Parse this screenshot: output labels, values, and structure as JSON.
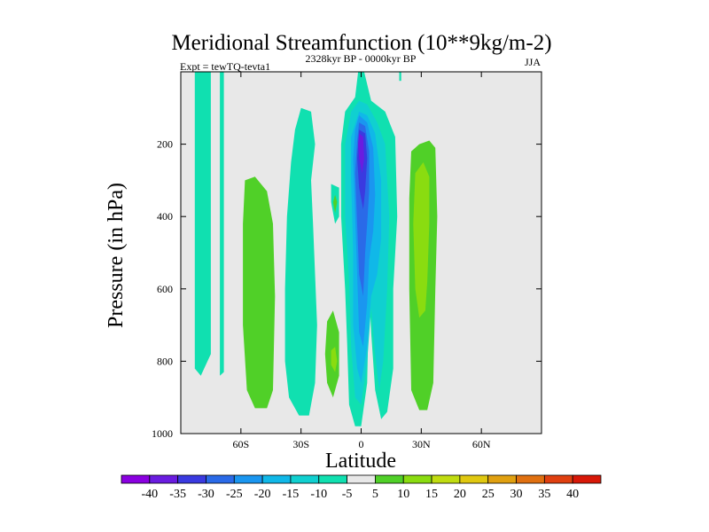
{
  "chart_data": {
    "type": "filled-contour",
    "title": "Meridional Streamfunction (10**9kg/m-2)",
    "subtitle_left": "Expt = tewTQ-tevta1",
    "subtitle_center": "2328kyr BP - 0000kyr BP",
    "subtitle_right": "JJA",
    "xlabel": "Latitude",
    "ylabel": "Pressure (in hPa)",
    "xlim": [
      -90,
      90
    ],
    "ylim": [
      1000,
      0
    ],
    "x_ticks": [
      {
        "value": -60,
        "label": "60S"
      },
      {
        "value": -30,
        "label": "30S"
      },
      {
        "value": 0,
        "label": "0"
      },
      {
        "value": 30,
        "label": "30N"
      },
      {
        "value": 60,
        "label": "60N"
      }
    ],
    "y_ticks": [
      {
        "value": 200,
        "label": "200"
      },
      {
        "value": 400,
        "label": "400"
      },
      {
        "value": 600,
        "label": "600"
      },
      {
        "value": 800,
        "label": "800"
      },
      {
        "value": 1000,
        "label": "1000"
      }
    ],
    "colorbar": {
      "labels": [
        "-40",
        "-35",
        "-30",
        "-25",
        "-20",
        "-15",
        "-10",
        "-5",
        "5",
        "10",
        "15",
        "20",
        "25",
        "30",
        "35",
        "40"
      ],
      "colors": [
        "#8a00e0",
        "#6a1ce0",
        "#3a3ae0",
        "#2a6ae8",
        "#1a96f0",
        "#10b8e8",
        "#10d0d0",
        "#10e0b0",
        "#e8e8e8",
        "#50d028",
        "#8adc10",
        "#c0dc10",
        "#e0c810",
        "#e0a010",
        "#e07010",
        "#e04010",
        "#d81808"
      ]
    },
    "regions": [
      {
        "color": "#10e0b0",
        "points": [
          [
            -83,
            0
          ],
          [
            -75,
            0
          ],
          [
            -75,
            780
          ],
          [
            -80,
            840
          ],
          [
            -83,
            820
          ]
        ]
      },
      {
        "color": "#10e0b0",
        "points": [
          [
            -70.5,
            0
          ],
          [
            -68.5,
            0
          ],
          [
            -68.5,
            830
          ],
          [
            -70.5,
            840
          ]
        ]
      },
      {
        "color": "#50d028",
        "points": [
          [
            -58,
            300
          ],
          [
            -53,
            290
          ],
          [
            -47,
            330
          ],
          [
            -44,
            420
          ],
          [
            -43,
            620
          ],
          [
            -44,
            880
          ],
          [
            -47,
            930
          ],
          [
            -53,
            930
          ],
          [
            -57,
            880
          ],
          [
            -59,
            700
          ],
          [
            -59,
            420
          ]
        ]
      },
      {
        "color": "#10e0b0",
        "points": [
          [
            -30,
            100
          ],
          [
            -25,
            110
          ],
          [
            -23,
            200
          ],
          [
            -25,
            300
          ],
          [
            -24,
            420
          ],
          [
            -23,
            560
          ],
          [
            -22,
            700
          ],
          [
            -23,
            860
          ],
          [
            -26,
            950
          ],
          [
            -31,
            950
          ],
          [
            -36,
            900
          ],
          [
            -38,
            800
          ],
          [
            -38,
            600
          ],
          [
            -37,
            400
          ],
          [
            -35,
            250
          ],
          [
            -33,
            160
          ]
        ]
      },
      {
        "color": "#10e0b0",
        "points": [
          [
            -15,
            310
          ],
          [
            -11,
            320
          ],
          [
            -11,
            400
          ],
          [
            -13,
            420
          ],
          [
            -15,
            360
          ]
        ]
      },
      {
        "color": "#50d028",
        "points": [
          [
            -13,
            340
          ],
          [
            -12,
            360
          ],
          [
            -13,
            390
          ],
          [
            -14,
            360
          ]
        ]
      },
      {
        "color": "#10e0b0",
        "points": [
          [
            -1.5,
            0
          ],
          [
            1.5,
            0
          ],
          [
            5,
            80
          ],
          [
            12,
            110
          ],
          [
            17,
            180
          ],
          [
            18,
            400
          ],
          [
            16,
            600
          ],
          [
            16,
            820
          ],
          [
            13,
            940
          ],
          [
            10,
            960
          ],
          [
            7,
            880
          ],
          [
            5,
            720
          ],
          [
            4,
            600
          ],
          [
            3,
            860
          ],
          [
            0,
            980
          ],
          [
            -3,
            980
          ],
          [
            -6,
            920
          ],
          [
            -7,
            750
          ],
          [
            -8,
            600
          ],
          [
            -10,
            400
          ],
          [
            -10,
            200
          ],
          [
            -8,
            110
          ],
          [
            -3,
            70
          ]
        ]
      },
      {
        "color": "#10d0d0",
        "points": [
          [
            -1,
            80
          ],
          [
            3,
            90
          ],
          [
            8,
            140
          ],
          [
            12,
            200
          ],
          [
            14,
            400
          ],
          [
            13,
            600
          ],
          [
            11,
            800
          ],
          [
            9,
            880
          ],
          [
            7,
            780
          ],
          [
            5,
            650
          ],
          [
            3,
            800
          ],
          [
            0,
            920
          ],
          [
            -3,
            900
          ],
          [
            -5,
            760
          ],
          [
            -6,
            580
          ],
          [
            -8,
            400
          ],
          [
            -8,
            200
          ],
          [
            -5,
            110
          ]
        ]
      },
      {
        "color": "#10b8e8",
        "points": [
          [
            -1,
            110
          ],
          [
            3,
            120
          ],
          [
            7,
            170
          ],
          [
            10,
            300
          ],
          [
            10,
            460
          ],
          [
            8,
            560
          ],
          [
            5,
            620
          ],
          [
            3,
            760
          ],
          [
            0,
            860
          ],
          [
            -2,
            820
          ],
          [
            -4,
            700
          ],
          [
            -4,
            500
          ],
          [
            -5,
            300
          ],
          [
            -5,
            180
          ]
        ]
      },
      {
        "color": "#1a96f0",
        "points": [
          [
            -1,
            120
          ],
          [
            3,
            140
          ],
          [
            6,
            210
          ],
          [
            7,
            340
          ],
          [
            6,
            440
          ],
          [
            4,
            520
          ],
          [
            3,
            640
          ],
          [
            1,
            760
          ],
          [
            -1,
            720
          ],
          [
            -2,
            560
          ],
          [
            -3,
            400
          ],
          [
            -4,
            240
          ],
          [
            -3,
            160
          ]
        ]
      },
      {
        "color": "#2a6ae8",
        "points": [
          [
            -1,
            140
          ],
          [
            2,
            150
          ],
          [
            4,
            220
          ],
          [
            4,
            330
          ],
          [
            3,
            420
          ],
          [
            2,
            500
          ],
          [
            1,
            620
          ],
          [
            -1,
            560
          ],
          [
            -2,
            420
          ],
          [
            -3,
            280
          ],
          [
            -2,
            190
          ]
        ]
      },
      {
        "color": "#3a3ae0",
        "points": [
          [
            -1,
            160
          ],
          [
            2,
            170
          ],
          [
            3,
            240
          ],
          [
            2,
            330
          ],
          [
            1,
            380
          ],
          [
            -1,
            320
          ],
          [
            -2,
            240
          ]
        ]
      },
      {
        "color": "#6a1ce0",
        "points": [
          [
            -1,
            170
          ],
          [
            1,
            180
          ],
          [
            1.5,
            240
          ],
          [
            0.5,
            280
          ],
          [
            -1,
            240
          ],
          [
            -1.5,
            200
          ]
        ]
      },
      {
        "color": "#50d028",
        "points": [
          [
            -17,
            690
          ],
          [
            -14,
            660
          ],
          [
            -11,
            720
          ],
          [
            -11,
            840
          ],
          [
            -14,
            900
          ],
          [
            -17,
            860
          ],
          [
            -18,
            780
          ]
        ]
      },
      {
        "color": "#8adc10",
        "points": [
          [
            -15,
            770
          ],
          [
            -13,
            760
          ],
          [
            -12,
            800
          ],
          [
            -13,
            830
          ],
          [
            -15,
            810
          ]
        ]
      },
      {
        "color": "#10e0b0",
        "points": [
          [
            19,
            0
          ],
          [
            20,
            0
          ],
          [
            20,
            25
          ],
          [
            19,
            25
          ]
        ]
      },
      {
        "color": "#50d028",
        "points": [
          [
            25,
            220
          ],
          [
            29,
            200
          ],
          [
            34,
            190
          ],
          [
            37,
            210
          ],
          [
            38,
            400
          ],
          [
            37,
            600
          ],
          [
            36,
            860
          ],
          [
            33,
            935
          ],
          [
            29,
            935
          ],
          [
            25,
            880
          ],
          [
            24,
            600
          ],
          [
            24,
            350
          ]
        ]
      },
      {
        "color": "#8adc10",
        "points": [
          [
            27,
            280
          ],
          [
            31,
            250
          ],
          [
            34,
            290
          ],
          [
            34,
            420
          ],
          [
            33,
            580
          ],
          [
            32,
            660
          ],
          [
            29,
            680
          ],
          [
            27,
            600
          ],
          [
            26,
            420
          ]
        ]
      }
    ]
  }
}
